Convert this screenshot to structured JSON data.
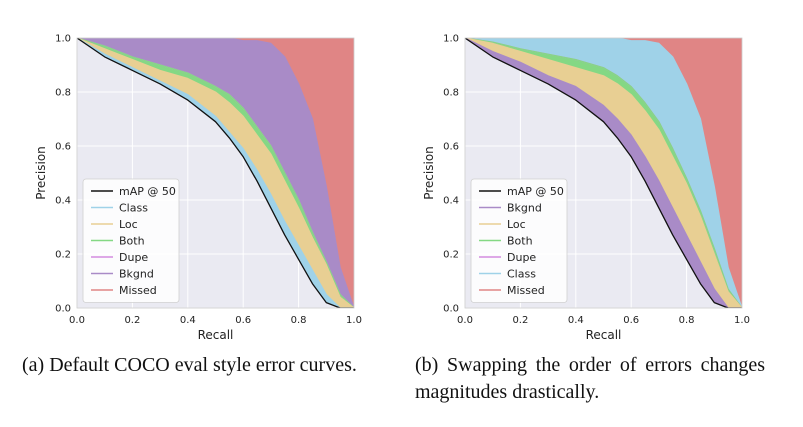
{
  "chart_data": [
    {
      "type": "area",
      "xlabel": "Recall",
      "ylabel": "Precision",
      "xlim": [
        0,
        1
      ],
      "ylim": [
        0,
        1
      ],
      "xticks": [
        "0.0",
        "0.2",
        "0.4",
        "0.6",
        "0.8",
        "1.0"
      ],
      "yticks": [
        "0.0",
        "0.2",
        "0.4",
        "0.6",
        "0.8",
        "1.0"
      ],
      "grid": true,
      "legend_position": "bottom-left",
      "x": [
        0,
        0.1,
        0.2,
        0.3,
        0.4,
        0.5,
        0.55,
        0.6,
        0.65,
        0.7,
        0.75,
        0.8,
        0.85,
        0.9,
        0.95,
        1.0
      ],
      "series": [
        {
          "name": "mAP @ 50",
          "color": "#111111",
          "values": [
            1.0,
            0.93,
            0.88,
            0.83,
            0.77,
            0.69,
            0.63,
            0.56,
            0.47,
            0.37,
            0.27,
            0.18,
            0.09,
            0.02,
            0.0,
            0.0
          ]
        },
        {
          "name": "Class",
          "color": "#9fd2e8",
          "values": [
            1.0,
            0.94,
            0.89,
            0.84,
            0.79,
            0.71,
            0.65,
            0.59,
            0.51,
            0.42,
            0.32,
            0.23,
            0.14,
            0.05,
            0.0,
            0.0
          ]
        },
        {
          "name": "Loc",
          "color": "#e8cf93",
          "values": [
            1.0,
            0.96,
            0.92,
            0.88,
            0.85,
            0.8,
            0.76,
            0.71,
            0.64,
            0.57,
            0.47,
            0.37,
            0.26,
            0.16,
            0.04,
            0.0
          ]
        },
        {
          "name": "Both",
          "color": "#84d884",
          "values": [
            1.0,
            0.97,
            0.93,
            0.9,
            0.87,
            0.82,
            0.79,
            0.74,
            0.67,
            0.6,
            0.5,
            0.4,
            0.28,
            0.17,
            0.05,
            0.0
          ]
        },
        {
          "name": "Dupe",
          "color": "#d48be0",
          "values": [
            1.0,
            0.97,
            0.93,
            0.9,
            0.87,
            0.82,
            0.79,
            0.74,
            0.67,
            0.6,
            0.5,
            0.4,
            0.28,
            0.17,
            0.05,
            0.0
          ]
        },
        {
          "name": "Bkgnd",
          "color": "#a98bc7",
          "values": [
            1.0,
            1.0,
            1.0,
            1.0,
            1.0,
            1.0,
            1.0,
            0.99,
            0.99,
            0.98,
            0.93,
            0.83,
            0.7,
            0.45,
            0.15,
            0.0
          ]
        },
        {
          "name": "Missed",
          "color": "#e08585",
          "values": [
            1.0,
            1.0,
            1.0,
            1.0,
            1.0,
            1.0,
            1.0,
            1.0,
            1.0,
            1.0,
            1.0,
            1.0,
            1.0,
            1.0,
            1.0,
            1.0
          ]
        }
      ]
    },
    {
      "type": "area",
      "xlabel": "Recall",
      "ylabel": "Precision",
      "xlim": [
        0,
        1
      ],
      "ylim": [
        0,
        1
      ],
      "xticks": [
        "0.0",
        "0.2",
        "0.4",
        "0.6",
        "0.8",
        "1.0"
      ],
      "yticks": [
        "0.0",
        "0.2",
        "0.4",
        "0.6",
        "0.8",
        "1.0"
      ],
      "grid": true,
      "legend_position": "bottom-left",
      "x": [
        0,
        0.1,
        0.2,
        0.3,
        0.4,
        0.5,
        0.55,
        0.6,
        0.65,
        0.7,
        0.75,
        0.8,
        0.85,
        0.9,
        0.95,
        1.0
      ],
      "series": [
        {
          "name": "mAP @ 50",
          "color": "#111111",
          "values": [
            1.0,
            0.93,
            0.88,
            0.83,
            0.77,
            0.69,
            0.63,
            0.56,
            0.47,
            0.37,
            0.27,
            0.18,
            0.09,
            0.02,
            0.0,
            0.0
          ]
        },
        {
          "name": "Bkgnd",
          "color": "#a98bc7",
          "values": [
            1.0,
            0.95,
            0.91,
            0.86,
            0.82,
            0.75,
            0.7,
            0.64,
            0.56,
            0.47,
            0.37,
            0.27,
            0.17,
            0.07,
            0.0,
            0.0
          ]
        },
        {
          "name": "Loc",
          "color": "#e8cf93",
          "values": [
            1.0,
            0.98,
            0.95,
            0.92,
            0.89,
            0.86,
            0.83,
            0.79,
            0.73,
            0.66,
            0.56,
            0.46,
            0.34,
            0.2,
            0.06,
            0.0
          ]
        },
        {
          "name": "Both",
          "color": "#84d884",
          "values": [
            1.0,
            0.985,
            0.96,
            0.94,
            0.92,
            0.89,
            0.86,
            0.82,
            0.76,
            0.69,
            0.59,
            0.48,
            0.36,
            0.22,
            0.07,
            0.0
          ]
        },
        {
          "name": "Dupe",
          "color": "#d48be0",
          "values": [
            1.0,
            0.985,
            0.96,
            0.94,
            0.92,
            0.89,
            0.86,
            0.82,
            0.76,
            0.69,
            0.59,
            0.48,
            0.36,
            0.22,
            0.07,
            0.0
          ]
        },
        {
          "name": "Class",
          "color": "#9fd2e8",
          "values": [
            1.0,
            1.0,
            1.0,
            1.0,
            1.0,
            1.0,
            1.0,
            0.99,
            0.99,
            0.98,
            0.93,
            0.83,
            0.7,
            0.45,
            0.15,
            0.0
          ]
        },
        {
          "name": "Missed",
          "color": "#e08585",
          "values": [
            1.0,
            1.0,
            1.0,
            1.0,
            1.0,
            1.0,
            1.0,
            1.0,
            1.0,
            1.0,
            1.0,
            1.0,
            1.0,
            1.0,
            1.0,
            1.0
          ]
        }
      ]
    }
  ],
  "captions": {
    "a": "(a) Default COCO eval style error curves.",
    "b": "(b) Swapping the order of errors changes magnitudes drastically."
  },
  "colors": {
    "grid": "#ffffff",
    "frame": "#cccccc",
    "plot_background": "#eaeaf2"
  }
}
